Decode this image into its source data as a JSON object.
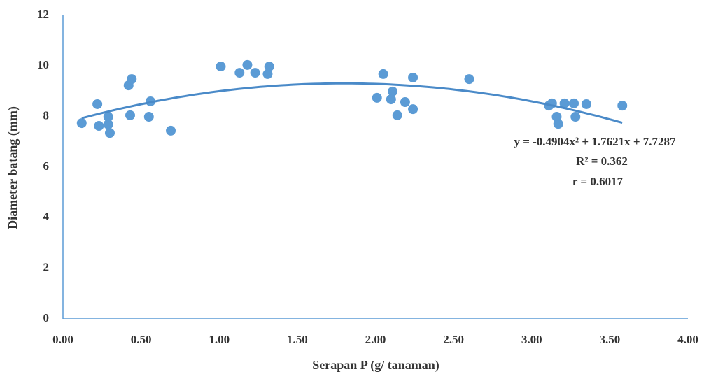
{
  "chart_data": {
    "type": "scatter",
    "x_label": "Serapan P (g/ tanaman)",
    "y_label": "Diameter batang (mm)",
    "x": [
      0.12,
      0.22,
      0.23,
      0.29,
      0.29,
      0.3,
      0.42,
      0.44,
      0.43,
      0.56,
      0.55,
      0.69,
      1.01,
      1.13,
      1.18,
      1.23,
      1.32,
      1.31,
      2.01,
      2.05,
      2.11,
      2.1,
      2.14,
      2.19,
      2.24,
      2.24,
      2.6,
      3.11,
      3.13,
      3.16,
      3.17,
      3.21,
      3.27,
      3.28,
      3.35,
      3.58
    ],
    "values": [
      7.74,
      8.49,
      7.63,
      7.69,
      7.99,
      7.35,
      9.23,
      9.48,
      8.05,
      8.6,
      7.99,
      7.44,
      9.98,
      9.73,
      10.04,
      9.73,
      9.98,
      9.68,
      8.74,
      9.68,
      8.99,
      8.68,
      8.05,
      8.57,
      9.54,
      8.29,
      9.48,
      8.43,
      8.52,
      7.99,
      7.71,
      8.52,
      8.52,
      7.99,
      8.49,
      8.43
    ],
    "color": "#5b9bd5",
    "trendline": {
      "coefficients": [
        -0.4904,
        1.7621,
        7.7287
      ],
      "color": "#4a8ac8"
    },
    "annotations": [
      "y = -0.4904x² + 1.7621x + 7.7287",
      "R² = 0.362",
      "r = 0.6017"
    ],
    "xlim": [
      0,
      4
    ],
    "ylim": [
      0,
      12
    ],
    "xticks": [
      {
        "value": 0,
        "label": "0.00"
      },
      {
        "value": 0.5,
        "label": "0.50"
      },
      {
        "value": 1,
        "label": "1.00"
      },
      {
        "value": 1.5,
        "label": "1.50"
      },
      {
        "value": 2,
        "label": "2.00"
      },
      {
        "value": 2.5,
        "label": "2.50"
      },
      {
        "value": 3,
        "label": "3.00"
      },
      {
        "value": 3.5,
        "label": "3.50"
      },
      {
        "value": 4,
        "label": "4.00"
      }
    ],
    "yticks": [
      0,
      2,
      4,
      6,
      8,
      10,
      12
    ],
    "grid": false
  }
}
